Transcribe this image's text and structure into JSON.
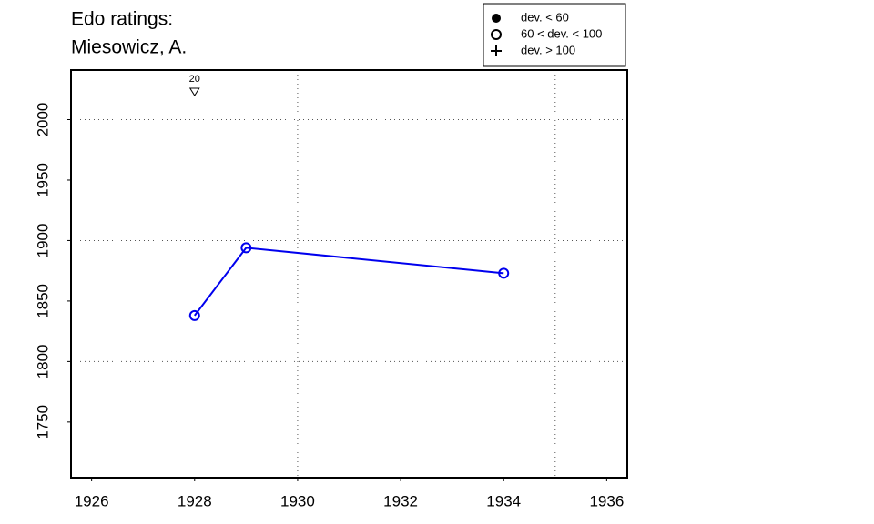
{
  "chart_data": {
    "type": "line",
    "title_lines": [
      "Edo ratings:",
      "Miesowicz, A."
    ],
    "x": [
      1928,
      1929,
      1934
    ],
    "series": [
      {
        "values": [
          1838,
          1894,
          1873
        ],
        "color": "#0000ee",
        "marker": "open-circle"
      }
    ],
    "xlim": [
      1925.6,
      1936.4
    ],
    "ylim": [
      1704,
      2041
    ],
    "xticks": [
      1926,
      1928,
      1930,
      1932,
      1934,
      1936
    ],
    "yticks": [
      1750,
      1800,
      1850,
      1900,
      1950,
      2000
    ],
    "xgrid": [
      1930,
      1935
    ],
    "ygrid": [
      1800,
      1900,
      2000
    ],
    "annotations": [
      {
        "x": 1928,
        "label": "20"
      }
    ],
    "legend": {
      "position": "top-right",
      "entries": [
        {
          "marker": "filled-circle",
          "label": "dev. < 60"
        },
        {
          "marker": "open-circle",
          "label": "60 < dev. < 100"
        },
        {
          "marker": "plus",
          "label": "dev. > 100"
        }
      ]
    }
  }
}
